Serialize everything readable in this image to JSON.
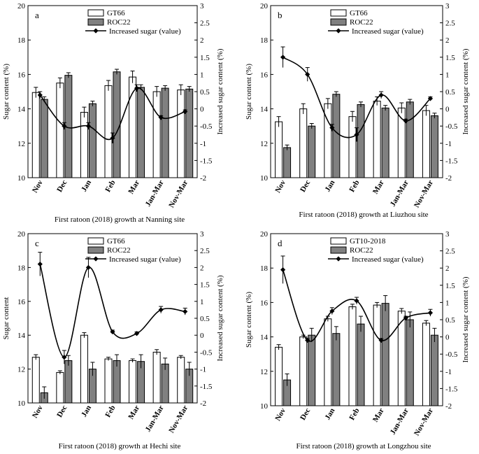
{
  "colors": {
    "gt_fill": "#ffffff",
    "roc_fill": "#808080",
    "line": "#000000",
    "axis": "#000000"
  },
  "chart_data": [
    {
      "panel_letter": "a",
      "type": "bar+line",
      "categories": [
        "Nov",
        "Dec",
        "Jan",
        "Feb",
        "Mar",
        "Jan-Mar",
        "Nov-Mar"
      ],
      "title": "First ratoon (2018) growth at Nanning site",
      "ylabel": "Sugar content (%)",
      "y2label": "Increased sugar content (%)",
      "ylim": [
        10,
        20
      ],
      "y2lim": [
        -2,
        3
      ],
      "yticks": [
        "10",
        "12",
        "14",
        "16",
        "18",
        "20"
      ],
      "y2ticks": [
        "-2",
        "-1.5",
        "-1",
        "-0.5",
        "0",
        "0.5",
        "1",
        "1.5",
        "2",
        "2.5",
        "3"
      ],
      "legend_position": "top-center",
      "series": [
        {
          "name": "GT66",
          "kind": "bar",
          "values": [
            14.95,
            15.5,
            13.8,
            15.35,
            15.85,
            15.0,
            15.1
          ],
          "errors": [
            0.3,
            0.3,
            0.3,
            0.3,
            0.35,
            0.3,
            0.3
          ]
        },
        {
          "name": "ROC22",
          "kind": "bar",
          "values": [
            14.55,
            15.95,
            14.3,
            16.15,
            15.25,
            15.2,
            15.15
          ],
          "errors": [
            0.15,
            0.15,
            0.15,
            0.15,
            0.15,
            0.15,
            0.15
          ]
        },
        {
          "name": "Increased sugar (value)",
          "kind": "line",
          "values": [
            0.4,
            -0.5,
            -0.5,
            -0.85,
            0.6,
            -0.25,
            -0.08
          ],
          "errors": [
            0.1,
            0.1,
            0.1,
            0.15,
            0.1,
            0.05,
            0.05
          ]
        }
      ]
    },
    {
      "panel_letter": "b",
      "type": "bar+line",
      "categories": [
        "Nov",
        "Dec",
        "Jan",
        "Feb",
        "Mar",
        "Jan-Mar",
        "Nov-Mar"
      ],
      "title": "First ratoon (2018) growth at Liuzhou site",
      "ylabel": "Sugar content (%)",
      "y2label": "Increased sugar content (%)",
      "ylim": [
        10,
        20
      ],
      "y2lim": [
        -2,
        3
      ],
      "yticks": [
        "10",
        "12",
        "14",
        "16",
        "18",
        "20"
      ],
      "y2ticks": [
        "-2",
        "-1.5",
        "-1",
        "-0.5",
        "0",
        "0.5",
        "1",
        "1.5",
        "2",
        "2.5",
        "3"
      ],
      "legend_position": "top-center",
      "series": [
        {
          "name": "GT66",
          "kind": "bar",
          "values": [
            13.25,
            14.0,
            14.3,
            13.55,
            14.45,
            14.05,
            13.9
          ],
          "errors": [
            0.3,
            0.3,
            0.3,
            0.3,
            0.25,
            0.3,
            0.3
          ]
        },
        {
          "name": "ROC22",
          "kind": "bar",
          "values": [
            11.75,
            13.0,
            14.85,
            14.25,
            14.05,
            14.4,
            13.6
          ],
          "errors": [
            0.15,
            0.15,
            0.15,
            0.15,
            0.15,
            0.15,
            0.15
          ]
        },
        {
          "name": "Increased sugar (value)",
          "kind": "line",
          "values": [
            1.5,
            1.0,
            -0.55,
            -0.75,
            0.4,
            -0.35,
            0.3
          ],
          "errors": [
            0.3,
            0.2,
            0.1,
            0.2,
            0.1,
            0.05,
            0.05
          ]
        }
      ]
    },
    {
      "panel_letter": "c",
      "type": "bar+line",
      "categories": [
        "Nov",
        "Dec",
        "Jan",
        "Feb",
        "Mar",
        "Jan-Mar",
        "Nov-Mar"
      ],
      "title": "First ratoon (2018) growth at Hechi site",
      "ylabel": "Sugar content",
      "y2label": "Increased sugar content (%)",
      "ylim": [
        10,
        20
      ],
      "y2lim": [
        -2,
        3
      ],
      "yticks": [
        "10",
        "12",
        "14",
        "16",
        "18",
        "20"
      ],
      "y2ticks": [
        "-2",
        "-1.5",
        "-1",
        "-0.5",
        "0",
        "0.5",
        "1",
        "1.5",
        "2",
        "2.5",
        "3"
      ],
      "legend_position": "top-center",
      "series": [
        {
          "name": "GT66",
          "kind": "bar",
          "values": [
            12.7,
            11.8,
            14.0,
            12.6,
            12.5,
            13.0,
            12.7
          ],
          "errors": [
            0.15,
            0.1,
            0.15,
            0.1,
            0.1,
            0.15,
            0.1
          ]
        },
        {
          "name": "ROC22",
          "kind": "bar",
          "values": [
            10.6,
            12.5,
            12.0,
            12.5,
            12.45,
            12.3,
            12.0
          ],
          "errors": [
            0.35,
            0.3,
            0.4,
            0.35,
            0.4,
            0.35,
            0.4
          ]
        },
        {
          "name": "Increased sugar (value)",
          "kind": "line",
          "values": [
            2.1,
            -0.65,
            2.0,
            0.1,
            0.05,
            0.75,
            0.7
          ],
          "errors": [
            0.35,
            0.2,
            0.3,
            0.05,
            0.05,
            0.1,
            0.1
          ]
        }
      ]
    },
    {
      "panel_letter": "d",
      "type": "bar+line",
      "categories": [
        "Nov",
        "Dec",
        "Jan",
        "Feb",
        "Mar",
        "Jan-Mar",
        "Nov-Mar"
      ],
      "title": "First ratoon (2018) growth at Longzhou site",
      "ylabel": "Sugar content (%)",
      "y2label": "Increased sugar content (%)",
      "ylim": [
        10,
        20
      ],
      "y2lim": [
        -2,
        3
      ],
      "yticks": [
        "10",
        "12",
        "14",
        "16",
        "18",
        "20"
      ],
      "y2ticks": [
        "-2",
        "-1.5",
        "-1",
        "-0.5",
        "0",
        "0.5",
        "1",
        "1.5",
        "2",
        "2.5",
        "3"
      ],
      "legend_position": "top-center",
      "series": [
        {
          "name": "GT10-2018",
          "kind": "bar",
          "values": [
            13.4,
            14.0,
            15.05,
            15.75,
            15.85,
            15.5,
            14.8
          ],
          "errors": [
            0.15,
            0.1,
            0.15,
            0.15,
            0.15,
            0.15,
            0.15
          ]
        },
        {
          "name": "ROC22",
          "kind": "bar",
          "values": [
            11.5,
            14.1,
            14.2,
            14.75,
            15.95,
            15.0,
            14.1
          ],
          "errors": [
            0.35,
            0.4,
            0.4,
            0.45,
            0.45,
            0.45,
            0.4
          ]
        },
        {
          "name": "Increased sugar (value)",
          "kind": "line",
          "values": [
            1.95,
            -0.1,
            0.75,
            1.05,
            -0.1,
            0.55,
            0.7
          ],
          "errors": [
            0.4,
            0.05,
            0.1,
            0.1,
            0.05,
            0.05,
            0.1
          ]
        }
      ]
    }
  ]
}
